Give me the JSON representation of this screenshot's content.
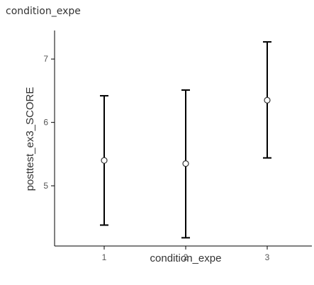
{
  "heading": "condition_expe",
  "chart_data": {
    "type": "scatter",
    "title": "",
    "xlabel": "condition_expe",
    "ylabel": "posttest_ex3_SCORE",
    "categories": [
      "1",
      "2",
      "3"
    ],
    "series": [
      {
        "points": [
          {
            "x": "1",
            "mean": 5.4,
            "lower": 4.38,
            "upper": 6.42
          },
          {
            "x": "2",
            "mean": 5.35,
            "lower": 4.18,
            "upper": 6.51
          },
          {
            "x": "3",
            "mean": 6.35,
            "lower": 5.44,
            "upper": 7.27
          }
        ]
      }
    ],
    "yticks": [
      5,
      6,
      7
    ],
    "ylim": [
      4.05,
      7.45
    ],
    "grid": false,
    "colors": {
      "axis": "#000000",
      "errorbar": "#000000",
      "marker_fill": "#ffffff",
      "marker_stroke": "#333333"
    }
  }
}
